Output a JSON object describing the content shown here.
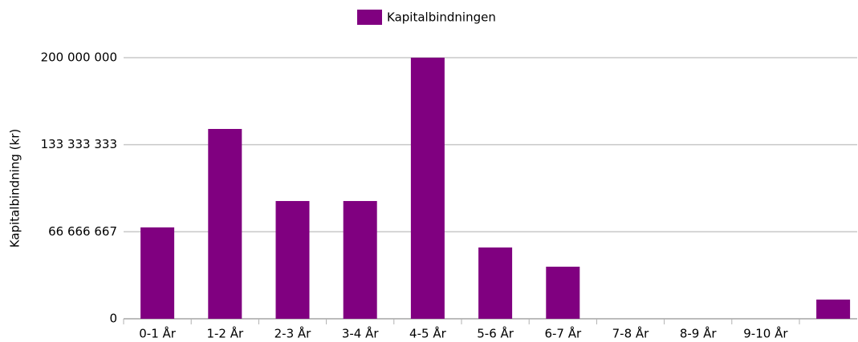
{
  "chart_data": {
    "type": "bar",
    "legend": "Kapitalbindningen",
    "y_label": "Kapitalbindning (kr)",
    "categories": [
      "0-1 År",
      "1-2 År",
      "2-3 År",
      "3-4 År",
      "4-5 År",
      "5-6 År",
      "6-7 År",
      "7-8 År",
      "8-9 År",
      "9-10 År",
      null
    ],
    "values": [
      70000000,
      145400000,
      90200000,
      90200000,
      200000000,
      54600000,
      39900000,
      0,
      0,
      0,
      14700000
    ],
    "color": "#800080",
    "ylim": [
      0,
      200000000
    ],
    "yticks": [
      0,
      {
        "value": 66666667,
        "label": "66 666 667"
      },
      {
        "value": 133333333,
        "label": "133 333 333"
      },
      {
        "value": 200000000,
        "label": "200 000 000"
      }
    ],
    "grid": true,
    "legend_position": "top"
  }
}
